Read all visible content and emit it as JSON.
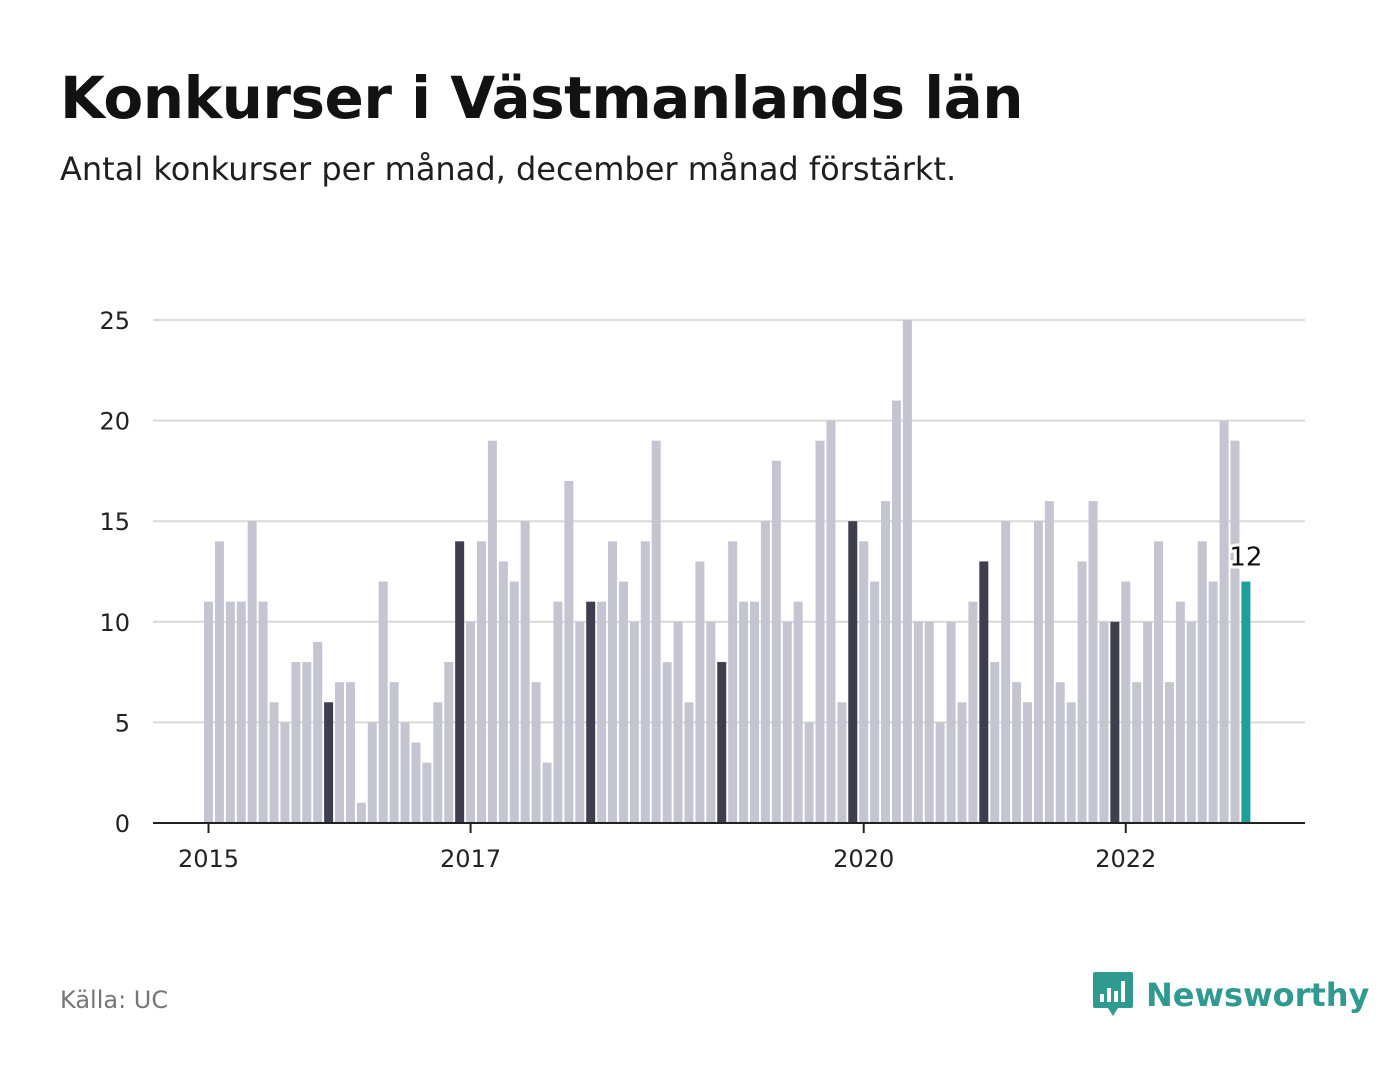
{
  "header": {
    "title": "Konkurser i Västmanlands län",
    "subtitle": "Antal konkurser per månad, december månad förstärkt."
  },
  "footer": {
    "source": "Källa: UC",
    "brand": "Newsworthy"
  },
  "colors": {
    "bar": "#c5c5d1",
    "december": "#3f3e4e",
    "latest": "#1aa29a",
    "grid": "#d9d9d9",
    "axis": "#222222",
    "brand": "#2f9a8f"
  },
  "chart_data": {
    "type": "bar",
    "title": "Konkurser i Västmanlands län",
    "subtitle": "Antal konkurser per månad, december månad förstärkt.",
    "xlabel": "",
    "ylabel": "",
    "ylim": [
      0,
      25
    ],
    "y_ticks": [
      0,
      5,
      10,
      15,
      20,
      25
    ],
    "x_tick_labels": [
      {
        "label": "2015",
        "index": 0
      },
      {
        "label": "2017",
        "index": 24
      },
      {
        "label": "2020",
        "index": 60
      },
      {
        "label": "2022",
        "index": 84
      }
    ],
    "start": "2015-01",
    "values": [
      11,
      14,
      11,
      11,
      15,
      11,
      6,
      5,
      8,
      8,
      9,
      6,
      7,
      7,
      1,
      5,
      12,
      7,
      5,
      4,
      3,
      6,
      8,
      14,
      10,
      14,
      19,
      13,
      12,
      15,
      7,
      3,
      11,
      17,
      10,
      11,
      11,
      14,
      12,
      10,
      14,
      19,
      8,
      10,
      6,
      13,
      10,
      8,
      14,
      11,
      11,
      15,
      18,
      10,
      11,
      5,
      19,
      20,
      6,
      15,
      14,
      12,
      16,
      21,
      25,
      10,
      10,
      5,
      10,
      6,
      11,
      13,
      8,
      15,
      7,
      6,
      15,
      16,
      7,
      6,
      13,
      16,
      10,
      10,
      12,
      7,
      10,
      14,
      7,
      11,
      10,
      14,
      12,
      20,
      19,
      12
    ],
    "highlight_note": "Every 12th bar (December) drawn dark; last bar highlighted",
    "latest_label": "12"
  }
}
